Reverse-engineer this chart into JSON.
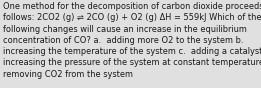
{
  "lines": [
    "One method for the decomposition of carbon dioxide proceeds as",
    "follows: 2CO2 (g) ⇌ 2CO (g) + O2 (g) ΔH = 559kJ Which of the",
    "following changes will cause an increase in the equilibrium",
    "concentration of CO? a.  adding more O2 to the system b.",
    "increasing the temperature of the system c.  adding a catalyst d.",
    "increasing the pressure of the system at constant temperature e.",
    "removing CO2 from the system"
  ],
  "background_color": "#e0e0e0",
  "text_color": "#1a1a1a",
  "font_size": 5.95,
  "fig_width": 2.61,
  "fig_height": 0.88,
  "dpi": 100
}
